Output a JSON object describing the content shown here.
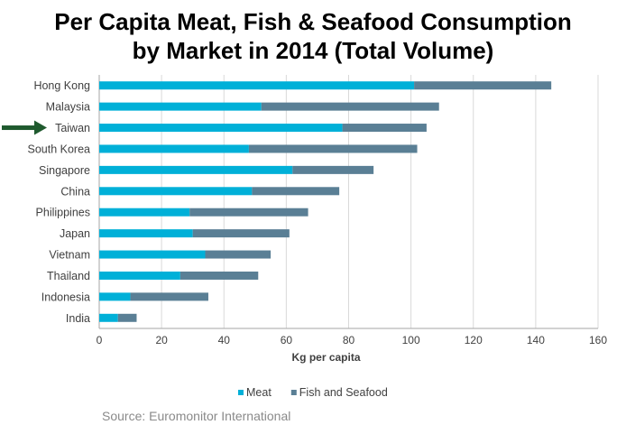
{
  "title_lines": [
    "Per Capita Meat, Fish & Seafood Consumption",
    "by Market in 2014 (Total Volume)"
  ],
  "source": "Source: Euromonitor International",
  "highlight": {
    "category": "Taiwan",
    "arrow_color": "#1f5a2e"
  },
  "colors": {
    "meat": "#00b0d8",
    "fish": "#5a7f95",
    "grid": "#d9d9d9",
    "axis": "#a6a6a6"
  },
  "chart_data": {
    "type": "bar",
    "orientation": "horizontal",
    "stacked": true,
    "categories": [
      "Hong Kong",
      "Malaysia",
      "Taiwan",
      "South Korea",
      "Singapore",
      "China",
      "Philippines",
      "Japan",
      "Vietnam",
      "Thailand",
      "Indonesia",
      "India"
    ],
    "series": [
      {
        "name": "Meat",
        "values": [
          101,
          52,
          78,
          48,
          62,
          49,
          29,
          30,
          34,
          26,
          10,
          6
        ]
      },
      {
        "name": "Fish and Seafood",
        "values": [
          44,
          57,
          27,
          54,
          26,
          28,
          38,
          31,
          21,
          25,
          25,
          6
        ]
      }
    ],
    "xlabel": "Kg per capita",
    "ylabel": "",
    "xlim": [
      0,
      160
    ],
    "xticks": [
      0,
      20,
      40,
      60,
      80,
      100,
      120,
      140,
      160
    ],
    "grid": "vertical",
    "legend": "bottom"
  }
}
